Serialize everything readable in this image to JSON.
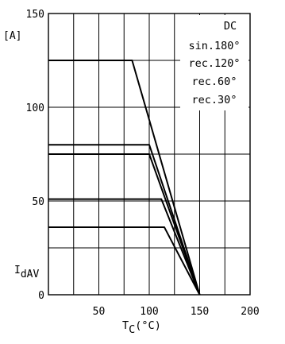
{
  "chart_data": {
    "type": "line",
    "x_unit_label": "°C",
    "xlabel_main": "T",
    "xlabel_sub": "C",
    "ylabel_main": "I",
    "ylabel_sub": "dAV",
    "y_unit_label": "[A]",
    "xlim": [
      0,
      200
    ],
    "ylim": [
      0,
      150
    ],
    "x_ticks": [
      "50",
      "100",
      "150",
      "200"
    ],
    "y_ticks": [
      "0",
      "50",
      "100",
      "150"
    ],
    "legend": [
      "DC",
      "sin.180°",
      "rec.120°",
      "rec.60°",
      "rec.30°"
    ],
    "legend_position": "top-right",
    "grid": true,
    "series": [
      {
        "name": "DC",
        "x": [
          0,
          83,
          150
        ],
        "y": [
          125,
          125,
          0
        ]
      },
      {
        "name": "sin.180°",
        "x": [
          0,
          100,
          150
        ],
        "y": [
          80,
          80,
          0
        ]
      },
      {
        "name": "rec.120°",
        "x": [
          0,
          100,
          150
        ],
        "y": [
          75,
          75,
          0
        ]
      },
      {
        "name": "rec.60°",
        "x": [
          0,
          112,
          150
        ],
        "y": [
          51,
          51,
          0
        ]
      },
      {
        "name": "rec.30°",
        "x": [
          0,
          115,
          150
        ],
        "y": [
          36,
          36,
          0
        ]
      }
    ]
  }
}
